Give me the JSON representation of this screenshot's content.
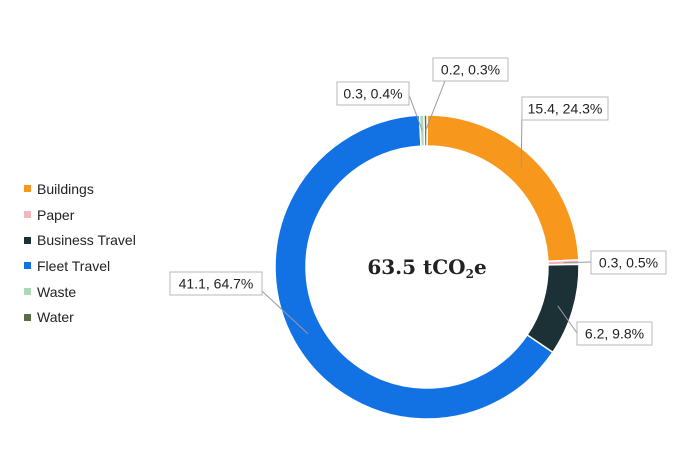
{
  "chart_data": {
    "type": "pie",
    "variant": "donut",
    "center_label": {
      "value": "63.5 tCO",
      "subscript": "2",
      "suffix": "e"
    },
    "legend_position": "left",
    "slices": [
      {
        "name": "Buildings",
        "value": 15.4,
        "percent": 24.3,
        "label": "15.4, 24.3%",
        "color": "#F7981D"
      },
      {
        "name": "Paper",
        "value": 0.3,
        "percent": 0.5,
        "label": "0.3, 0.5%",
        "color": "#F4B6BE"
      },
      {
        "name": "Business Travel",
        "value": 6.2,
        "percent": 9.8,
        "label": "6.2, 9.8%",
        "color": "#1C3136"
      },
      {
        "name": "Fleet Travel",
        "value": 41.1,
        "percent": 64.7,
        "label": "41.1, 64.7%",
        "color": "#1272E3"
      },
      {
        "name": "Waste",
        "value": 0.3,
        "percent": 0.4,
        "label": "0.3, 0.4%",
        "color": "#A9D9B9"
      },
      {
        "name": "Water",
        "value": 0.2,
        "percent": 0.3,
        "label": "0.2, 0.3%",
        "color": "#5A6B45"
      }
    ]
  }
}
